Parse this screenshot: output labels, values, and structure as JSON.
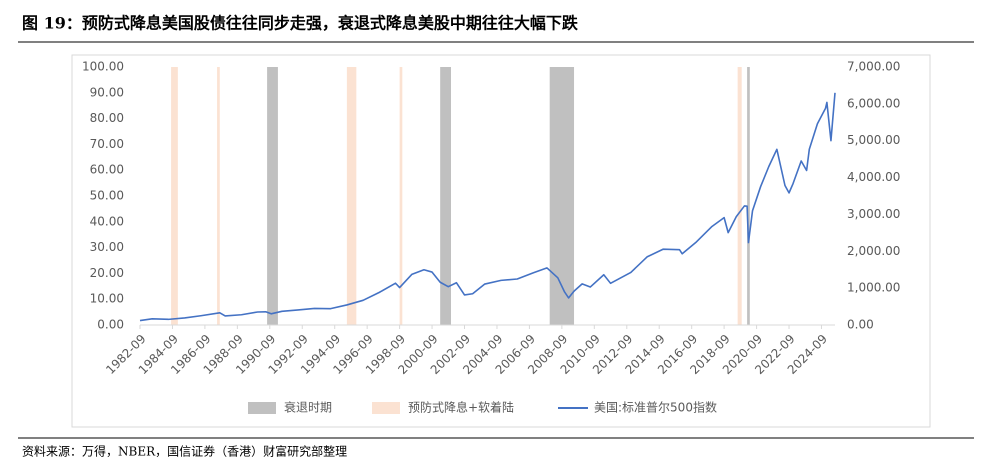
{
  "chart_data": {
    "type": "line",
    "title": "图 19：预防式降息美国股债往往同步走强，衰退式降息美股中期往往大幅下跌",
    "note": "资料来源：万得，NBER，国信证券（香港）财富研究部整理",
    "xlim": [
      "1982-09",
      "2025-07"
    ],
    "xticks": [
      "1982-09",
      "1984-09",
      "1986-09",
      "1988-09",
      "1990-09",
      "1992-09",
      "1994-09",
      "1996-09",
      "1998-09",
      "2000-09",
      "2002-09",
      "2004-09",
      "2006-09",
      "2008-09",
      "2010-09",
      "2012-09",
      "2014-09",
      "2016-09",
      "2018-09",
      "2020-09",
      "2022-09",
      "2024-09"
    ],
    "ylim": [
      0,
      100
    ],
    "yticks": [
      {
        "value": 0,
        "label": "0.00"
      },
      {
        "value": 10,
        "label": "10.00"
      },
      {
        "value": 20,
        "label": "20.00"
      },
      {
        "value": 30,
        "label": "30.00"
      },
      {
        "value": 40,
        "label": "40.00"
      },
      {
        "value": 50,
        "label": "50.00"
      },
      {
        "value": 60,
        "label": "60.00"
      },
      {
        "value": 70,
        "label": "70.00"
      },
      {
        "value": 80,
        "label": "80.00"
      },
      {
        "value": 90,
        "label": "90.00"
      },
      {
        "value": 100,
        "label": "100.00"
      }
    ],
    "y2lim": [
      0,
      7000
    ],
    "y2ticks": [
      {
        "value": 0,
        "label": "0.00"
      },
      {
        "value": 1000,
        "label": "1,000.00"
      },
      {
        "value": 2000,
        "label": "2,000.00"
      },
      {
        "value": 3000,
        "label": "3,000.00"
      },
      {
        "value": 4000,
        "label": "4,000.00"
      },
      {
        "value": 5000,
        "label": "5,000.00"
      },
      {
        "value": 6000,
        "label": "6,000.00"
      },
      {
        "value": 7000,
        "label": "7,000.00"
      }
    ],
    "series": [
      {
        "name": "衰退时期",
        "color": "#c0c0c0",
        "kind": "band",
        "periods": [
          [
            "1990-07",
            "1991-03"
          ],
          [
            "2001-03",
            "2001-11"
          ],
          [
            "2007-12",
            "2009-06"
          ],
          [
            "2020-02",
            "2020-04"
          ]
        ],
        "values": [
          100,
          100,
          100,
          100
        ]
      },
      {
        "name": "预防式降息+软着陆",
        "color": "#fbe2d2",
        "kind": "band",
        "periods": [
          [
            "1984-08",
            "1985-01"
          ],
          [
            "1987-06",
            "1987-08"
          ],
          [
            "1995-06",
            "1996-01"
          ],
          [
            "1998-09",
            "1998-11"
          ],
          [
            "2019-07",
            "2019-10"
          ]
        ],
        "values": [
          100,
          100,
          100,
          100,
          100
        ]
      },
      {
        "name": "美国:标准普尔500指数",
        "color": "#4472c4",
        "kind": "line",
        "axis": "y2",
        "x": [
          "1982-09",
          "1983-06",
          "1984-06",
          "1985-06",
          "1986-06",
          "1987-08",
          "1987-12",
          "1988-12",
          "1989-12",
          "1990-06",
          "1990-10",
          "1991-06",
          "1992-06",
          "1993-06",
          "1994-06",
          "1995-06",
          "1996-06",
          "1997-06",
          "1998-06",
          "1998-09",
          "1999-06",
          "2000-03",
          "2000-09",
          "2001-03",
          "2001-09",
          "2002-03",
          "2002-09",
          "2003-03",
          "2003-12",
          "2004-12",
          "2005-12",
          "2006-12",
          "2007-10",
          "2008-06",
          "2008-11",
          "2009-02",
          "2009-06",
          "2009-12",
          "2010-06",
          "2011-04",
          "2011-09",
          "2012-12",
          "2013-12",
          "2014-12",
          "2015-12",
          "2016-02",
          "2016-12",
          "2017-12",
          "2018-09",
          "2018-12",
          "2019-06",
          "2019-12",
          "2020-02",
          "2020-03",
          "2020-06",
          "2020-12",
          "2021-06",
          "2021-12",
          "2022-06",
          "2022-09",
          "2022-12",
          "2023-06",
          "2023-10",
          "2023-12",
          "2024-06",
          "2024-12",
          "2025-01",
          "2025-04",
          "2025-07"
        ],
        "values": [
          120,
          168,
          153,
          192,
          251,
          330,
          247,
          278,
          353,
          358,
          304,
          371,
          408,
          450,
          444,
          544,
          670,
          885,
          1133,
          1017,
          1372,
          1498,
          1436,
          1160,
          1040,
          1147,
          815,
          848,
          1111,
          1211,
          1248,
          1418,
          1549,
          1280,
          896,
          735,
          919,
          1115,
          1030,
          1363,
          1131,
          1426,
          1848,
          2058,
          2043,
          1932,
          2238,
          2673,
          2913,
          2506,
          2941,
          3230,
          3225,
          2237,
          3100,
          3756,
          4297,
          4766,
          3785,
          3585,
          3839,
          4450,
          4193,
          4769,
          5460,
          5881,
          6040,
          5000,
          6300
        ]
      }
    ]
  }
}
